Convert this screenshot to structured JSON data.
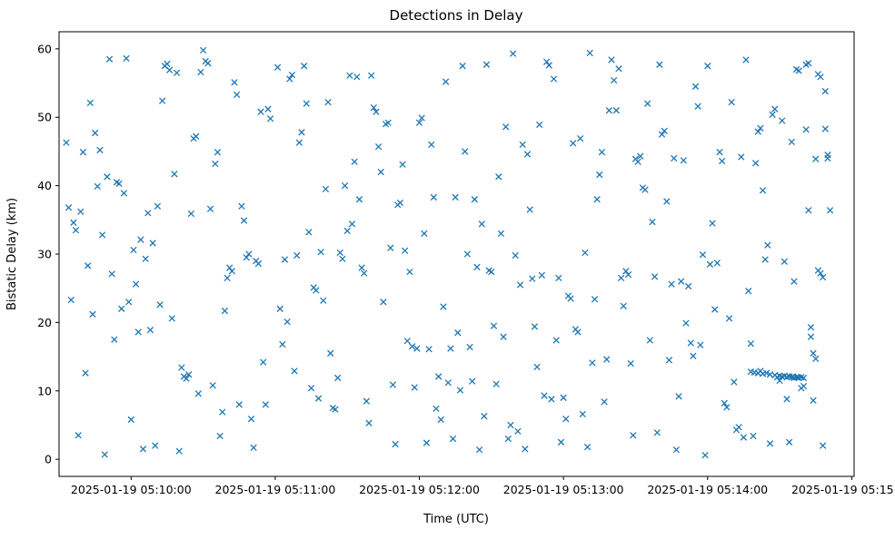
{
  "chart_data": {
    "type": "scatter",
    "title": "Detections in Delay",
    "xlabel": "Time (UTC)",
    "ylabel": "Bistatic Delay (km)",
    "marker": "x",
    "marker_color": "#1f77b4",
    "grid": false,
    "legend": "none",
    "x_unit": "seconds relative to 2025-01-19 05:10:00 UTC",
    "xlim_seconds": [
      -30,
      301
    ],
    "ylim": [
      -2.5,
      62.5
    ],
    "x_ticks": [
      {
        "t": 0,
        "label": "2025-01-19 05:10:00"
      },
      {
        "t": 60,
        "label": "2025-01-19 05:11:00"
      },
      {
        "t": 120,
        "label": "2025-01-19 05:12:00"
      },
      {
        "t": 180,
        "label": "2025-01-19 05:13:00"
      },
      {
        "t": 240,
        "label": "2025-01-19 05:14:00"
      },
      {
        "t": 300,
        "label": "2025-01-19 05:15:00"
      }
    ],
    "y_ticks": [
      0,
      10,
      20,
      30,
      40,
      50,
      60
    ],
    "points": [
      [
        -27,
        46.3
      ],
      [
        -26,
        36.8
      ],
      [
        -25,
        23.3
      ],
      [
        -24,
        34.6
      ],
      [
        -23,
        33.5
      ],
      [
        -22,
        3.5
      ],
      [
        -21,
        36.2
      ],
      [
        -20,
        44.9
      ],
      [
        -19,
        12.6
      ],
      [
        -18,
        28.3
      ],
      [
        -17,
        52.1
      ],
      [
        -16,
        21.2
      ],
      [
        -15,
        47.7
      ],
      [
        -14,
        39.9
      ],
      [
        -13,
        45.2
      ],
      [
        -12,
        32.8
      ],
      [
        -11,
        0.7
      ],
      [
        -10,
        41.3
      ],
      [
        -9,
        58.5
      ],
      [
        -8,
        27.1
      ],
      [
        -7,
        17.5
      ],
      [
        -6,
        40.5
      ],
      [
        -5,
        40.3
      ],
      [
        -4,
        22.0
      ],
      [
        -3,
        38.9
      ],
      [
        -2,
        58.6
      ],
      [
        -1,
        23.0
      ],
      [
        0,
        5.8
      ],
      [
        1,
        30.6
      ],
      [
        2,
        25.6
      ],
      [
        3,
        18.6
      ],
      [
        4,
        32.1
      ],
      [
        5,
        1.5
      ],
      [
        6,
        29.3
      ],
      [
        7,
        36.0
      ],
      [
        8,
        18.9
      ],
      [
        9,
        31.6
      ],
      [
        10,
        2.0
      ],
      [
        11,
        37.0
      ],
      [
        12,
        22.6
      ],
      [
        13,
        52.4
      ],
      [
        14,
        57.5
      ],
      [
        15,
        57.8
      ],
      [
        16,
        56.9
      ],
      [
        17,
        20.6
      ],
      [
        18,
        41.7
      ],
      [
        19,
        56.5
      ],
      [
        20,
        1.2
      ],
      [
        21,
        13.4
      ],
      [
        22,
        12.1
      ],
      [
        23,
        11.8
      ],
      [
        24,
        12.4
      ],
      [
        25,
        35.9
      ],
      [
        26,
        46.9
      ],
      [
        27,
        47.2
      ],
      [
        28,
        9.6
      ],
      [
        29,
        56.6
      ],
      [
        30,
        59.8
      ],
      [
        31,
        58.2
      ],
      [
        32,
        57.9
      ],
      [
        33,
        36.6
      ],
      [
        34,
        10.8
      ],
      [
        35,
        43.2
      ],
      [
        36,
        44.9
      ],
      [
        37,
        3.4
      ],
      [
        38,
        6.9
      ],
      [
        39,
        21.7
      ],
      [
        40,
        26.5
      ],
      [
        41,
        28.0
      ],
      [
        42,
        27.5
      ],
      [
        43,
        55.1
      ],
      [
        44,
        53.3
      ],
      [
        45,
        8.0
      ],
      [
        46,
        37.0
      ],
      [
        47,
        34.9
      ],
      [
        48,
        29.5
      ],
      [
        49,
        30.0
      ],
      [
        50,
        5.9
      ],
      [
        51,
        1.7
      ],
      [
        52,
        29.0
      ],
      [
        53,
        28.6
      ],
      [
        54,
        50.8
      ],
      [
        55,
        14.2
      ],
      [
        56,
        8.0
      ],
      [
        57,
        51.2
      ],
      [
        58,
        49.8
      ],
      [
        61,
        57.3
      ],
      [
        62,
        22.0
      ],
      [
        63,
        16.8
      ],
      [
        64,
        29.2
      ],
      [
        65,
        20.1
      ],
      [
        66,
        55.6
      ],
      [
        67,
        56.2
      ],
      [
        68,
        12.9
      ],
      [
        69,
        29.8
      ],
      [
        70,
        46.3
      ],
      [
        71,
        47.8
      ],
      [
        72,
        57.5
      ],
      [
        73,
        52.0
      ],
      [
        74,
        33.2
      ],
      [
        75,
        10.4
      ],
      [
        76,
        25.1
      ],
      [
        77,
        24.7
      ],
      [
        78,
        8.9
      ],
      [
        79,
        30.3
      ],
      [
        80,
        23.2
      ],
      [
        81,
        39.5
      ],
      [
        82,
        52.2
      ],
      [
        83,
        15.5
      ],
      [
        84,
        7.5
      ],
      [
        85,
        7.3
      ],
      [
        86,
        11.9
      ],
      [
        87,
        30.2
      ],
      [
        88,
        29.3
      ],
      [
        89,
        40.0
      ],
      [
        90,
        33.4
      ],
      [
        91,
        56.1
      ],
      [
        92,
        34.4
      ],
      [
        93,
        43.5
      ],
      [
        94,
        55.9
      ],
      [
        95,
        38.0
      ],
      [
        96,
        28.0
      ],
      [
        97,
        27.2
      ],
      [
        98,
        8.5
      ],
      [
        99,
        5.3
      ],
      [
        100,
        56.1
      ],
      [
        101,
        51.4
      ],
      [
        102,
        50.8
      ],
      [
        103,
        45.7
      ],
      [
        104,
        42.0
      ],
      [
        105,
        23.0
      ],
      [
        106,
        49.0
      ],
      [
        107,
        49.2
      ],
      [
        108,
        30.9
      ],
      [
        109,
        10.9
      ],
      [
        110,
        2.2
      ],
      [
        111,
        37.2
      ],
      [
        112,
        37.5
      ],
      [
        113,
        43.1
      ],
      [
        114,
        30.5
      ],
      [
        115,
        17.3
      ],
      [
        116,
        27.4
      ],
      [
        117,
        16.5
      ],
      [
        118,
        10.5
      ],
      [
        119,
        16.2
      ],
      [
        120,
        49.2
      ],
      [
        121,
        49.9
      ],
      [
        122,
        33.0
      ],
      [
        123,
        2.4
      ],
      [
        124,
        16.1
      ],
      [
        125,
        46.0
      ],
      [
        126,
        38.3
      ],
      [
        127,
        7.4
      ],
      [
        128,
        12.1
      ],
      [
        129,
        5.8
      ],
      [
        130,
        22.3
      ],
      [
        131,
        55.2
      ],
      [
        132,
        11.2
      ],
      [
        133,
        16.2
      ],
      [
        134,
        3.0
      ],
      [
        135,
        38.3
      ],
      [
        136,
        18.5
      ],
      [
        137,
        10.1
      ],
      [
        138,
        57.5
      ],
      [
        139,
        45.0
      ],
      [
        140,
        30.0
      ],
      [
        141,
        16.4
      ],
      [
        142,
        11.4
      ],
      [
        143,
        38.0
      ],
      [
        144,
        28.1
      ],
      [
        145,
        1.4
      ],
      [
        146,
        34.4
      ],
      [
        147,
        6.3
      ],
      [
        148,
        57.7
      ],
      [
        149,
        27.6
      ],
      [
        150,
        27.4
      ],
      [
        151,
        19.5
      ],
      [
        152,
        11.0
      ],
      [
        153,
        41.3
      ],
      [
        154,
        33.0
      ],
      [
        155,
        17.9
      ],
      [
        156,
        48.6
      ],
      [
        157,
        3.0
      ],
      [
        158,
        5.0
      ],
      [
        159,
        59.3
      ],
      [
        160,
        29.8
      ],
      [
        161,
        4.1
      ],
      [
        162,
        25.5
      ],
      [
        163,
        46.0
      ],
      [
        164,
        1.5
      ],
      [
        165,
        44.6
      ],
      [
        166,
        36.5
      ],
      [
        167,
        26.4
      ],
      [
        168,
        19.4
      ],
      [
        169,
        13.5
      ],
      [
        170,
        48.9
      ],
      [
        171,
        26.9
      ],
      [
        172,
        9.3
      ],
      [
        173,
        58.1
      ],
      [
        174,
        57.6
      ],
      [
        175,
        8.8
      ],
      [
        176,
        55.6
      ],
      [
        177,
        17.4
      ],
      [
        178,
        26.5
      ],
      [
        179,
        2.5
      ],
      [
        180,
        9.0
      ],
      [
        181,
        5.9
      ],
      [
        182,
        23.9
      ],
      [
        183,
        23.5
      ],
      [
        184,
        46.2
      ],
      [
        185,
        19.0
      ],
      [
        186,
        18.6
      ],
      [
        187,
        46.9
      ],
      [
        188,
        6.6
      ],
      [
        189,
        30.2
      ],
      [
        190,
        1.8
      ],
      [
        191,
        59.4
      ],
      [
        192,
        14.1
      ],
      [
        193,
        23.4
      ],
      [
        194,
        38.0
      ],
      [
        195,
        41.6
      ],
      [
        196,
        44.9
      ],
      [
        197,
        8.4
      ],
      [
        198,
        14.6
      ],
      [
        199,
        51.0
      ],
      [
        200,
        58.4
      ],
      [
        201,
        55.4
      ],
      [
        202,
        51.0
      ],
      [
        203,
        57.1
      ],
      [
        204,
        26.5
      ],
      [
        205,
        22.4
      ],
      [
        206,
        27.5
      ],
      [
        207,
        27.0
      ],
      [
        208,
        14.0
      ],
      [
        209,
        3.5
      ],
      [
        210,
        43.9
      ],
      [
        211,
        43.5
      ],
      [
        212,
        44.3
      ],
      [
        213,
        39.7
      ],
      [
        214,
        39.4
      ],
      [
        215,
        52.0
      ],
      [
        216,
        17.4
      ],
      [
        217,
        34.7
      ],
      [
        218,
        26.7
      ],
      [
        219,
        3.9
      ],
      [
        220,
        57.7
      ],
      [
        221,
        47.5
      ],
      [
        222,
        48.0
      ],
      [
        223,
        37.7
      ],
      [
        224,
        14.5
      ],
      [
        225,
        25.6
      ],
      [
        226,
        44.0
      ],
      [
        227,
        1.4
      ],
      [
        228,
        9.2
      ],
      [
        229,
        26.0
      ],
      [
        230,
        43.7
      ],
      [
        231,
        19.9
      ],
      [
        232,
        25.3
      ],
      [
        233,
        17.0
      ],
      [
        234,
        15.1
      ],
      [
        235,
        54.5
      ],
      [
        236,
        51.6
      ],
      [
        237,
        16.7
      ],
      [
        238,
        29.9
      ],
      [
        239,
        0.6
      ],
      [
        240,
        57.5
      ],
      [
        241,
        28.5
      ],
      [
        242,
        34.5
      ],
      [
        243,
        21.9
      ],
      [
        244,
        28.7
      ],
      [
        245,
        44.9
      ],
      [
        246,
        43.6
      ],
      [
        247,
        8.2
      ],
      [
        248,
        7.6
      ],
      [
        249,
        20.6
      ],
      [
        250,
        52.2
      ],
      [
        251,
        11.3
      ],
      [
        252,
        4.3
      ],
      [
        253,
        4.7
      ],
      [
        254,
        44.2
      ],
      [
        255,
        3.2
      ],
      [
        256,
        58.4
      ],
      [
        257,
        24.6
      ],
      [
        258,
        16.9
      ],
      [
        259,
        3.4
      ],
      [
        260,
        43.3
      ],
      [
        261,
        47.9
      ],
      [
        262,
        48.4
      ],
      [
        263,
        39.3
      ],
      [
        264,
        29.2
      ],
      [
        265,
        31.3
      ],
      [
        266,
        2.3
      ],
      [
        267,
        50.4
      ],
      [
        268,
        51.2
      ],
      [
        269,
        12.0
      ],
      [
        270,
        11.5
      ],
      [
        271,
        49.5
      ],
      [
        272,
        28.9
      ],
      [
        273,
        8.8
      ],
      [
        274,
        2.5
      ],
      [
        275,
        46.4
      ],
      [
        276,
        26.0
      ],
      [
        277,
        57.0
      ],
      [
        278,
        56.8
      ],
      [
        279,
        10.4
      ],
      [
        280,
        10.7
      ],
      [
        281,
        57.7
      ],
      [
        282,
        57.9
      ],
      [
        283,
        19.3
      ],
      [
        284,
        15.5
      ],
      [
        285,
        14.7
      ],
      [
        286,
        27.6
      ],
      [
        287,
        27.2
      ],
      [
        288,
        26.6
      ],
      [
        289,
        53.8
      ],
      [
        290,
        44.5
      ],
      [
        258,
        12.8
      ],
      [
        259.5,
        12.7
      ],
      [
        261,
        12.6
      ],
      [
        262,
        12.9
      ],
      [
        263,
        12.5
      ],
      [
        264.5,
        12.6
      ],
      [
        266,
        12.4
      ],
      [
        268,
        12.3
      ],
      [
        270,
        12.2
      ],
      [
        271,
        12.1
      ],
      [
        272,
        12.2
      ],
      [
        273,
        12.0
      ],
      [
        274,
        12.1
      ],
      [
        275,
        12.0
      ],
      [
        275.5,
        12.1
      ],
      [
        276,
        11.9
      ],
      [
        277,
        12.0
      ],
      [
        277.5,
        12.0
      ],
      [
        278,
        11.9
      ],
      [
        279,
        12.0
      ],
      [
        280,
        11.9
      ],
      [
        281,
        48.2
      ],
      [
        282,
        36.4
      ],
      [
        283,
        17.9
      ],
      [
        284,
        8.6
      ],
      [
        285,
        43.9
      ],
      [
        286,
        56.3
      ],
      [
        287,
        55.9
      ],
      [
        288,
        2.0
      ],
      [
        289,
        48.3
      ],
      [
        290,
        44.0
      ],
      [
        291,
        36.4
      ]
    ]
  }
}
